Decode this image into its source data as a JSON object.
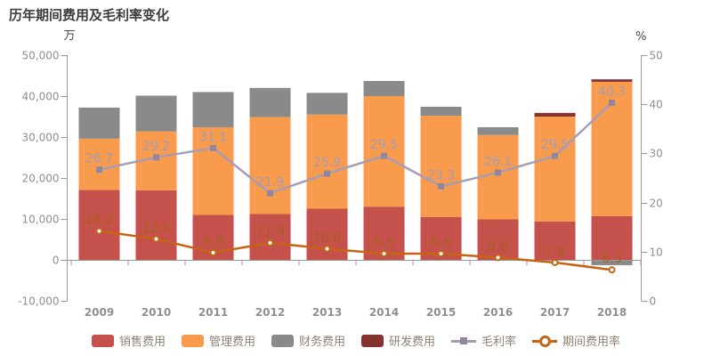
{
  "title": "历年期间费用及毛利率变化",
  "colors": {
    "background": "#ffffff",
    "title_text": "#3d3d3d",
    "axis_line": "#999999",
    "tick_label": "#8f8f8f",
    "unit_label": "#4a4a4a",
    "legend_text": "#8f8177"
  },
  "chart_data": {
    "type": "bar",
    "subtype": "stacked-bars-with-lines-combo",
    "title": "历年期间费用及毛利率变化",
    "categories": [
      "2009",
      "2010",
      "2011",
      "2012",
      "2013",
      "2014",
      "2015",
      "2016",
      "2017",
      "2018"
    ],
    "left_axis": {
      "unit": "万",
      "min": -10000,
      "max": 50000,
      "tick_values": [
        50000,
        40000,
        30000,
        20000,
        10000,
        0,
        -10000
      ],
      "tick_labels": [
        "50,000",
        "40,000",
        "30,000",
        "20,000",
        "10,000",
        "0",
        "-10,000"
      ]
    },
    "right_axis": {
      "unit": "%",
      "min": 0,
      "max": 50,
      "tick_values": [
        50,
        40,
        30,
        20,
        10,
        0
      ],
      "tick_labels": [
        "50",
        "40",
        "30",
        "20",
        "10",
        "0"
      ]
    },
    "grid": "off",
    "legend_position": "bottom-center",
    "bar_series": [
      {
        "key": "sales-expense",
        "name": "销售费用",
        "color": "#c5514d",
        "values": [
          17100,
          17000,
          11000,
          11200,
          12500,
          13000,
          10500,
          9900,
          9400,
          10700
        ]
      },
      {
        "key": "admin-expense",
        "name": "管理费用",
        "color": "#f89b4c",
        "values": [
          12500,
          14400,
          21400,
          23700,
          23000,
          27000,
          24700,
          20600,
          25600,
          32800
        ]
      },
      {
        "key": "finance-expense",
        "name": "财务费用",
        "color": "#8a8a8a",
        "values": [
          7600,
          8700,
          8600,
          7100,
          5300,
          3700,
          2200,
          1900,
          0,
          -1300
        ]
      },
      {
        "key": "rd-expense",
        "name": "研发费用",
        "color": "#86322f",
        "values": [
          0,
          0,
          0,
          0,
          0,
          0,
          0,
          0,
          900,
          600
        ]
      }
    ],
    "line_series": [
      {
        "key": "gross-margin",
        "name": "毛利率",
        "axis": "right",
        "color": "#a89cb4",
        "marker": "square",
        "marker_color": "#91859f",
        "label_color": "#a39cb8",
        "values": [
          26.7,
          29.2,
          31.1,
          21.9,
          25.9,
          29.5,
          23.3,
          26.1,
          29.5,
          40.3
        ],
        "labels": [
          "26.7",
          "29.2",
          "31.1",
          "21.9",
          "25.9",
          "29.5",
          "23.3",
          "26.1",
          "29.5",
          "40.3"
        ]
      },
      {
        "key": "period-expense-ratio",
        "name": "期间费用率",
        "axis": "right",
        "color": "#c76413",
        "marker": "circle",
        "marker_color": "#ffffff",
        "label_color": "#a85e1c",
        "values": [
          14.2,
          12.6,
          9.8,
          11.8,
          10.6,
          9.6,
          9.6,
          8.8,
          7.8,
          6.3
        ],
        "labels": [
          "14.2",
          "12.6",
          "9.8",
          "11.8",
          "10.6",
          "9.6",
          "9.6",
          "8.8",
          "7.8",
          "6.3"
        ]
      }
    ],
    "legend": [
      {
        "key": "sales-expense",
        "label": "销售费用",
        "type": "bar",
        "color": "#c5514d"
      },
      {
        "key": "admin-expense",
        "label": "管理费用",
        "type": "bar",
        "color": "#f89b4c"
      },
      {
        "key": "finance-expense",
        "label": "财务费用",
        "type": "bar",
        "color": "#8a8a8a"
      },
      {
        "key": "rd-expense",
        "label": "研发费用",
        "type": "bar",
        "color": "#86322f"
      },
      {
        "key": "gross-margin",
        "label": "毛利率",
        "type": "line",
        "marker": "square",
        "color": "#a89cb4",
        "marker_color": "#91859f"
      },
      {
        "key": "period-expense-ratio",
        "label": "期间费用率",
        "type": "line",
        "marker": "circle",
        "color": "#c76413",
        "marker_color": "#ffffff"
      }
    ]
  }
}
